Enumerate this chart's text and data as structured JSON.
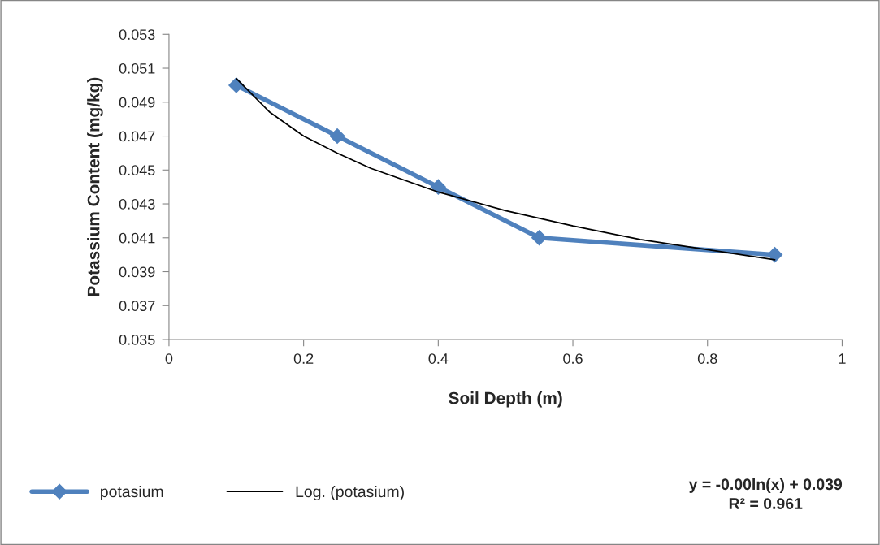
{
  "chart_data": {
    "type": "line",
    "xlabel": "Soil Depth (m)",
    "ylabel": "Potassium Content (mg/kg)",
    "x": [
      0.1,
      0.25,
      0.4,
      0.55,
      0.9
    ],
    "series": [
      {
        "name": "potasium",
        "color": "#4f81bd",
        "values": [
          0.05,
          0.047,
          0.044,
          0.041,
          0.04
        ],
        "marker": "diamond"
      },
      {
        "name": "Log. (potasium)",
        "color": "#000000",
        "type": "line",
        "marker": "none",
        "x": [
          0.1,
          0.15,
          0.2,
          0.25,
          0.3,
          0.4,
          0.5,
          0.6,
          0.7,
          0.8,
          0.9
        ],
        "values": [
          0.0504,
          0.0484,
          0.047,
          0.046,
          0.0451,
          0.0437,
          0.0426,
          0.0417,
          0.0409,
          0.0403,
          0.0397
        ]
      }
    ],
    "xlim": [
      0,
      1
    ],
    "xticks": [
      0,
      0.2,
      0.4,
      0.6,
      0.8,
      1
    ],
    "ylim": [
      0.035,
      0.053
    ],
    "yticks": [
      0.035,
      0.037,
      0.039,
      0.041,
      0.043,
      0.045,
      0.047,
      0.049,
      0.051,
      0.053
    ],
    "grid": false,
    "legend": "bottom",
    "line_style": "solid",
    "annotations": [
      "y = -0.00ln(x) + 0.039\nR² = 0.961"
    ]
  }
}
